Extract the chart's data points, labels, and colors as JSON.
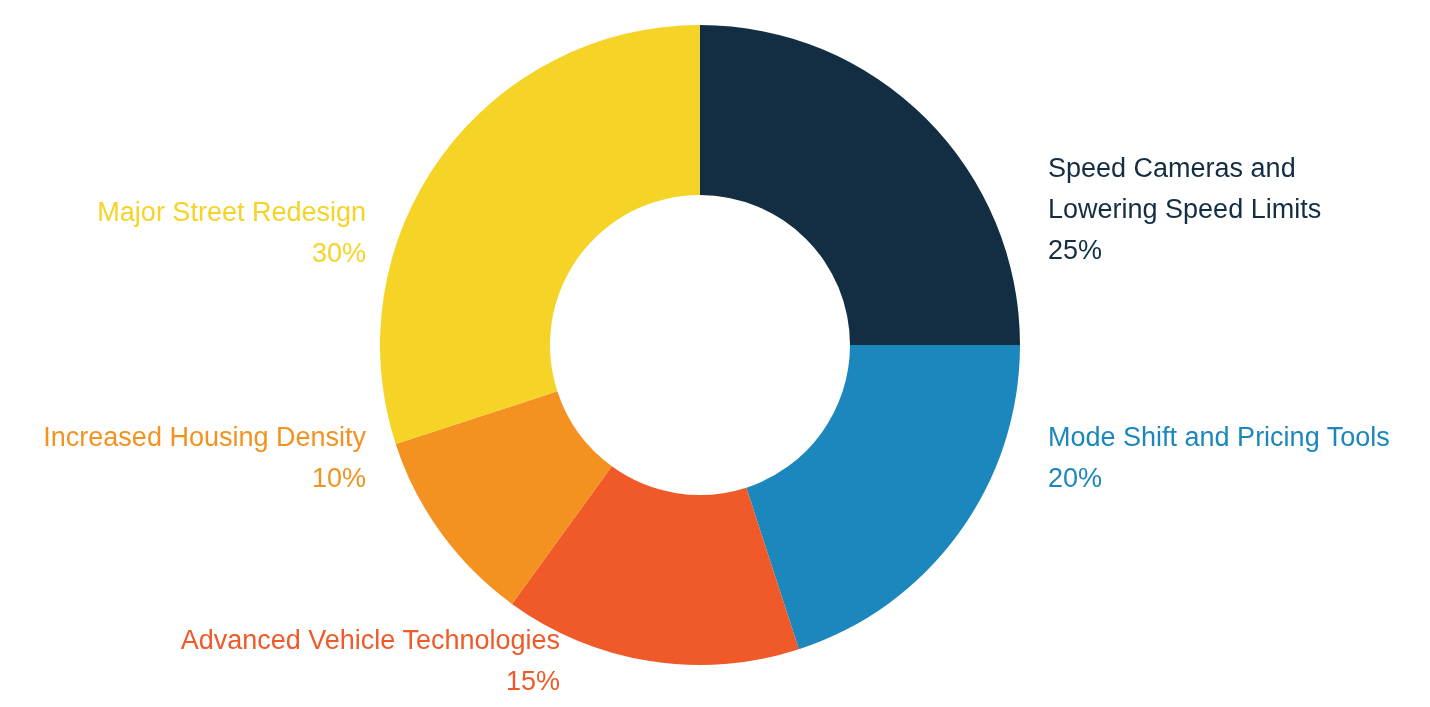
{
  "chart_data": {
    "type": "donut",
    "categories": [
      "Speed Cameras and\nLowering Speed Limits",
      "Mode Shift and Pricing Tools",
      "Advanced Vehicle Technologies",
      "Increased Housing Density",
      "Major Street Redesign"
    ],
    "values": [
      25,
      20,
      15,
      10,
      30
    ],
    "value_labels": [
      "25%",
      "20%",
      "15%",
      "10%",
      "30%"
    ],
    "colors": [
      "#132d42",
      "#1b87bc",
      "#ef5a28",
      "#f39220",
      "#f5d327"
    ]
  }
}
